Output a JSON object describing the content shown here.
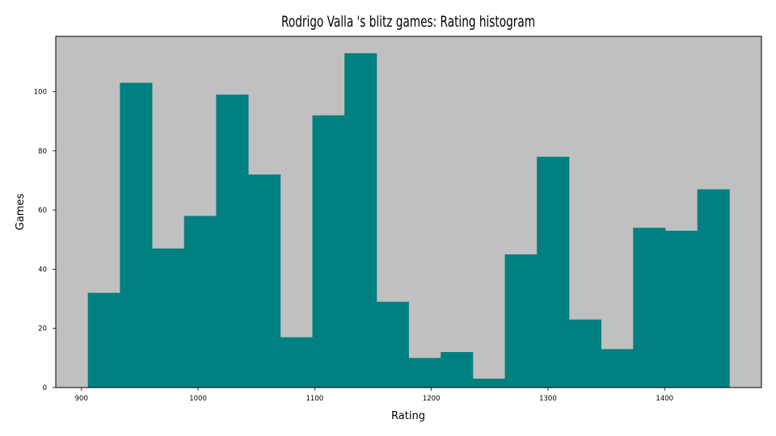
{
  "chart_data": {
    "type": "bar",
    "title": "Rodrigo Valla 's blitz games: Rating histogram",
    "xlabel": "Rating",
    "ylabel": "Games",
    "bin_edges": [
      905.5,
      933.0,
      960.5,
      988.0,
      1015.5,
      1043.0,
      1070.5,
      1098.0,
      1125.5,
      1153.0,
      1180.5,
      1208.0,
      1235.5,
      1263.0,
      1290.5,
      1318.0,
      1345.5,
      1373.0,
      1400.5,
      1428.0,
      1455.5
    ],
    "values": [
      32,
      103,
      47,
      58,
      99,
      72,
      17,
      92,
      113,
      29,
      10,
      12,
      3,
      45,
      78,
      23,
      13,
      54,
      53,
      67
    ],
    "xlim": [
      878,
      1483
    ],
    "ylim": [
      0,
      118.7
    ],
    "xticks": [
      900,
      1000,
      1100,
      1200,
      1300,
      1400
    ],
    "yticks": [
      0,
      20,
      40,
      60,
      80,
      100
    ],
    "grid": false,
    "legend": "none",
    "colors": {
      "bar": "#008080",
      "plot_background": "#c0c0c0",
      "figure_background": "#ffffff",
      "text": "#000000"
    }
  }
}
